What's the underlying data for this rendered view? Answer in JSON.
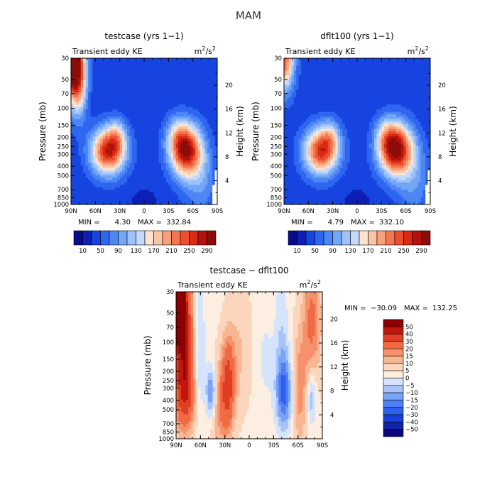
{
  "figure": {
    "title": "MAM"
  },
  "palettes": {
    "abs": [
      "#0a0a8c",
      "#0d1fb5",
      "#1744e0",
      "#2e66f0",
      "#4d86f5",
      "#74a6f8",
      "#9dc2fa",
      "#c4dafc",
      "#fde3d0",
      "#fbc4a5",
      "#f8a07a",
      "#f47650",
      "#ec4e2e",
      "#d72b14",
      "#b5120c",
      "#8c0c0c"
    ],
    "diff": [
      "#08087a",
      "#0f23a8",
      "#1a3fd4",
      "#2d5ff0",
      "#4d7ff5",
      "#7aa2f7",
      "#a7c3f9",
      "#d5e4fc",
      "#fdeee2",
      "#fbd6bd",
      "#f8b693",
      "#f5916b",
      "#f06a45",
      "#de3f23",
      "#c0160f",
      "#8a0000"
    ]
  },
  "chart_data": [
    {
      "id": "testcase",
      "type": "heatmap",
      "title": "testcase (yrs 1−1)",
      "left_label": "Transient eddy KE",
      "units_base": "m",
      "units_sup_a": "2",
      "units_mid": "/s",
      "units_sup_b": "2",
      "ylabel": "Pressure (mb)",
      "ylabel_right": "Height (km)",
      "x_ticks": [
        "90N",
        "60N",
        "30N",
        "0",
        "30S",
        "60S",
        "90S"
      ],
      "y_ticks": [
        "30",
        "50",
        "70",
        "100",
        "150",
        "200",
        "250",
        "300",
        "400",
        "500",
        "700",
        "850",
        "1000"
      ],
      "y_ticks_right": [
        "4",
        "8",
        "12",
        "16",
        "20"
      ],
      "xlim": [
        90,
        -90
      ],
      "ylim": [
        1000,
        30
      ],
      "min_label": "MIN =",
      "min_value": "4.30",
      "max_label": "MAX =",
      "max_value": "332.84",
      "colorbar_labels": [
        "10",
        "50",
        "90",
        "130",
        "170",
        "210",
        "250",
        "290"
      ],
      "levels": [
        10,
        30,
        50,
        70,
        90,
        110,
        130,
        150,
        170,
        190,
        210,
        230,
        250,
        270,
        290
      ],
      "value_max": 332.84,
      "blobs": [
        {
          "lat": 44,
          "p": 280,
          "amp": 235,
          "slat": 15,
          "slogp": 0.17
        },
        {
          "lat": 33,
          "p": 190,
          "amp": 70,
          "slat": 8,
          "slogp": 0.12
        },
        {
          "lat": -52,
          "p": 275,
          "amp": 250,
          "slat": 14,
          "slogp": 0.19
        },
        {
          "lat": -40,
          "p": 190,
          "amp": 60,
          "slat": 10,
          "slogp": 0.14
        },
        {
          "lat": 90,
          "p": 30,
          "amp": 320,
          "slat": 10,
          "slogp": 0.28
        },
        {
          "lat": 80,
          "p": 55,
          "amp": 120,
          "slat": 7,
          "slogp": 0.25
        },
        {
          "lat": -70,
          "p": 600,
          "amp": 50,
          "slat": 15,
          "slogp": 0.25
        },
        {
          "lat": 0,
          "p": 1000,
          "amp": -18,
          "slat": 10,
          "slogp": 0.1
        }
      ],
      "base": 35,
      "mask_south": true
    },
    {
      "id": "dflt100",
      "type": "heatmap",
      "title": "dflt100 (yrs 1−1)",
      "left_label": "Transient eddy KE",
      "units_base": "m",
      "units_sup_a": "2",
      "units_mid": "/s",
      "units_sup_b": "2",
      "ylabel": "Pressure (mb)",
      "ylabel_right": "Height (km)",
      "x_ticks": [
        "90N",
        "60N",
        "30N",
        "0",
        "30S",
        "60S",
        "90S"
      ],
      "y_ticks": [
        "30",
        "50",
        "70",
        "100",
        "150",
        "200",
        "250",
        "300",
        "400",
        "500",
        "700",
        "850",
        "1000"
      ],
      "y_ticks_right": [
        "4",
        "8",
        "12",
        "16",
        "20"
      ],
      "xlim": [
        90,
        -90
      ],
      "ylim": [
        1000,
        30
      ],
      "min_label": "MIN =",
      "min_value": "4.79",
      "max_label": "MAX =",
      "max_value": "332.10",
      "colorbar_labels": [
        "10",
        "50",
        "90",
        "130",
        "170",
        "210",
        "250",
        "290"
      ],
      "levels": [
        10,
        30,
        50,
        70,
        90,
        110,
        130,
        150,
        170,
        190,
        210,
        230,
        250,
        270,
        290
      ],
      "value_max": 332.1,
      "blobs": [
        {
          "lat": 44,
          "p": 280,
          "amp": 225,
          "slat": 15,
          "slogp": 0.17
        },
        {
          "lat": 33,
          "p": 190,
          "amp": 60,
          "slat": 8,
          "slogp": 0.12
        },
        {
          "lat": -48,
          "p": 270,
          "amp": 265,
          "slat": 15,
          "slogp": 0.19
        },
        {
          "lat": -36,
          "p": 190,
          "amp": 60,
          "slat": 10,
          "slogp": 0.14
        },
        {
          "lat": 90,
          "p": 30,
          "amp": 200,
          "slat": 9,
          "slogp": 0.24
        },
        {
          "lat": -70,
          "p": 600,
          "amp": 50,
          "slat": 15,
          "slogp": 0.25
        },
        {
          "lat": 0,
          "p": 1000,
          "amp": -18,
          "slat": 10,
          "slogp": 0.1
        }
      ],
      "base": 35,
      "mask_south": true
    },
    {
      "id": "difference",
      "type": "heatmap",
      "title": "testcase − dflt100",
      "left_label": "Transient eddy KE",
      "units_base": "m",
      "units_sup_a": "2",
      "units_mid": "/s",
      "units_sup_b": "2",
      "ylabel": "Pressure (mb)",
      "ylabel_right": "Height (km)",
      "x_ticks": [
        "90N",
        "60N",
        "30N",
        "0",
        "30S",
        "60S",
        "90S"
      ],
      "y_ticks": [
        "30",
        "50",
        "70",
        "100",
        "150",
        "200",
        "250",
        "300",
        "400",
        "500",
        "700",
        "850",
        "1000"
      ],
      "y_ticks_right": [
        "4",
        "8",
        "12",
        "16",
        "20"
      ],
      "xlim": [
        90,
        -90
      ],
      "ylim": [
        1000,
        30
      ],
      "min_label": "MIN =",
      "min_value": "−30.09",
      "max_label": "MAX =",
      "max_value": "132.25",
      "colorbar_labels": [
        "50",
        "40",
        "30",
        "20",
        "15",
        "10",
        "5",
        "0",
        "−5",
        "−10",
        "−15",
        "−20",
        "−30",
        "−40",
        "−50"
      ],
      "levels": [
        -50,
        -40,
        -30,
        -20,
        -15,
        -10,
        -5,
        0,
        5,
        10,
        15,
        20,
        30,
        40,
        50
      ],
      "value_max": 132.25,
      "blobs": [
        {
          "lat": 88,
          "p": 30,
          "amp": 132,
          "slat": 5,
          "slogp": 0.3
        },
        {
          "lat": 80,
          "p": 90,
          "amp": 40,
          "slat": 8,
          "slogp": 0.5
        },
        {
          "lat": 78,
          "p": 340,
          "amp": 22,
          "slat": 10,
          "slogp": 0.25
        },
        {
          "lat": 62,
          "p": 250,
          "amp": -8,
          "slat": 6,
          "slogp": 0.35
        },
        {
          "lat": 47,
          "p": 330,
          "amp": -22,
          "slat": 4,
          "slogp": 0.18
        },
        {
          "lat": 26,
          "p": 260,
          "amp": 28,
          "slat": 6,
          "slogp": 0.32
        },
        {
          "lat": 35,
          "p": 500,
          "amp": 12,
          "slat": 8,
          "slogp": 0.3
        },
        {
          "lat": 12,
          "p": 120,
          "amp": 6,
          "slat": 10,
          "slogp": 0.4
        },
        {
          "lat": -43,
          "p": 330,
          "amp": -24,
          "slat": 7,
          "slogp": 0.28
        },
        {
          "lat": -40,
          "p": 80,
          "amp": -8,
          "slat": 6,
          "slogp": 0.5
        },
        {
          "lat": -77,
          "p": 60,
          "amp": 18,
          "slat": 8,
          "slogp": 0.45
        },
        {
          "lat": -62,
          "p": 300,
          "amp": 14,
          "slat": 6,
          "slogp": 0.4
        },
        {
          "lat": -77,
          "p": 370,
          "amp": -15,
          "slat": 4,
          "slogp": 0.2
        },
        {
          "lat": 62,
          "p": 60,
          "amp": -8,
          "slat": 5,
          "slogp": 0.5
        },
        {
          "lat": -20,
          "p": 150,
          "amp": -5,
          "slat": 8,
          "slogp": 0.4
        }
      ],
      "base": 4,
      "mask_south": false
    }
  ]
}
